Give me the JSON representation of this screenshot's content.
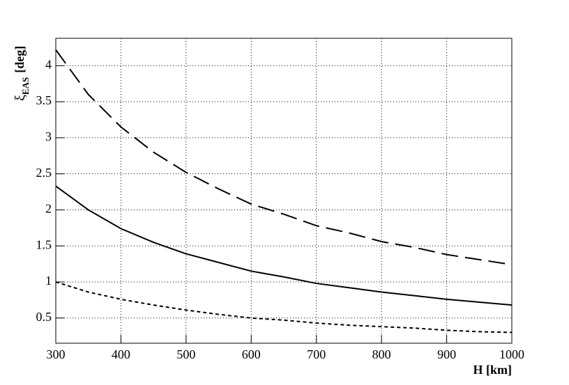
{
  "chart_data": {
    "type": "line",
    "x": [
      300,
      350,
      400,
      450,
      500,
      550,
      600,
      650,
      700,
      750,
      800,
      850,
      900,
      950,
      1000
    ],
    "series": [
      {
        "color": "#000000",
        "style": "long-dash",
        "values": [
          4.22,
          3.6,
          3.15,
          2.8,
          2.52,
          2.29,
          2.08,
          1.94,
          1.78,
          1.68,
          1.56,
          1.48,
          1.38,
          1.31,
          1.24
        ]
      },
      {
        "color": "#000000",
        "style": "solid",
        "values": [
          2.33,
          2.0,
          1.74,
          1.55,
          1.39,
          1.27,
          1.15,
          1.07,
          0.98,
          0.92,
          0.86,
          0.81,
          0.76,
          0.72,
          0.68
        ]
      },
      {
        "color": "#000000",
        "style": "dotted",
        "values": [
          1.0,
          0.86,
          0.76,
          0.68,
          0.61,
          0.55,
          0.5,
          0.47,
          0.43,
          0.4,
          0.38,
          0.36,
          0.33,
          0.31,
          0.3
        ]
      }
    ],
    "xlim": [
      300,
      1000
    ],
    "xticks": [
      300,
      400,
      500,
      600,
      700,
      800,
      900,
      1000
    ],
    "ylim": [
      0.15,
      4.38
    ],
    "yticks": [
      0.5,
      1,
      1.5,
      2,
      2.5,
      3,
      3.5,
      4
    ],
    "grid": true,
    "x_label": "H [km]",
    "y_label": {
      "symbol": "ξ",
      "subscript": "EAS",
      "unit": "[deg]"
    }
  }
}
